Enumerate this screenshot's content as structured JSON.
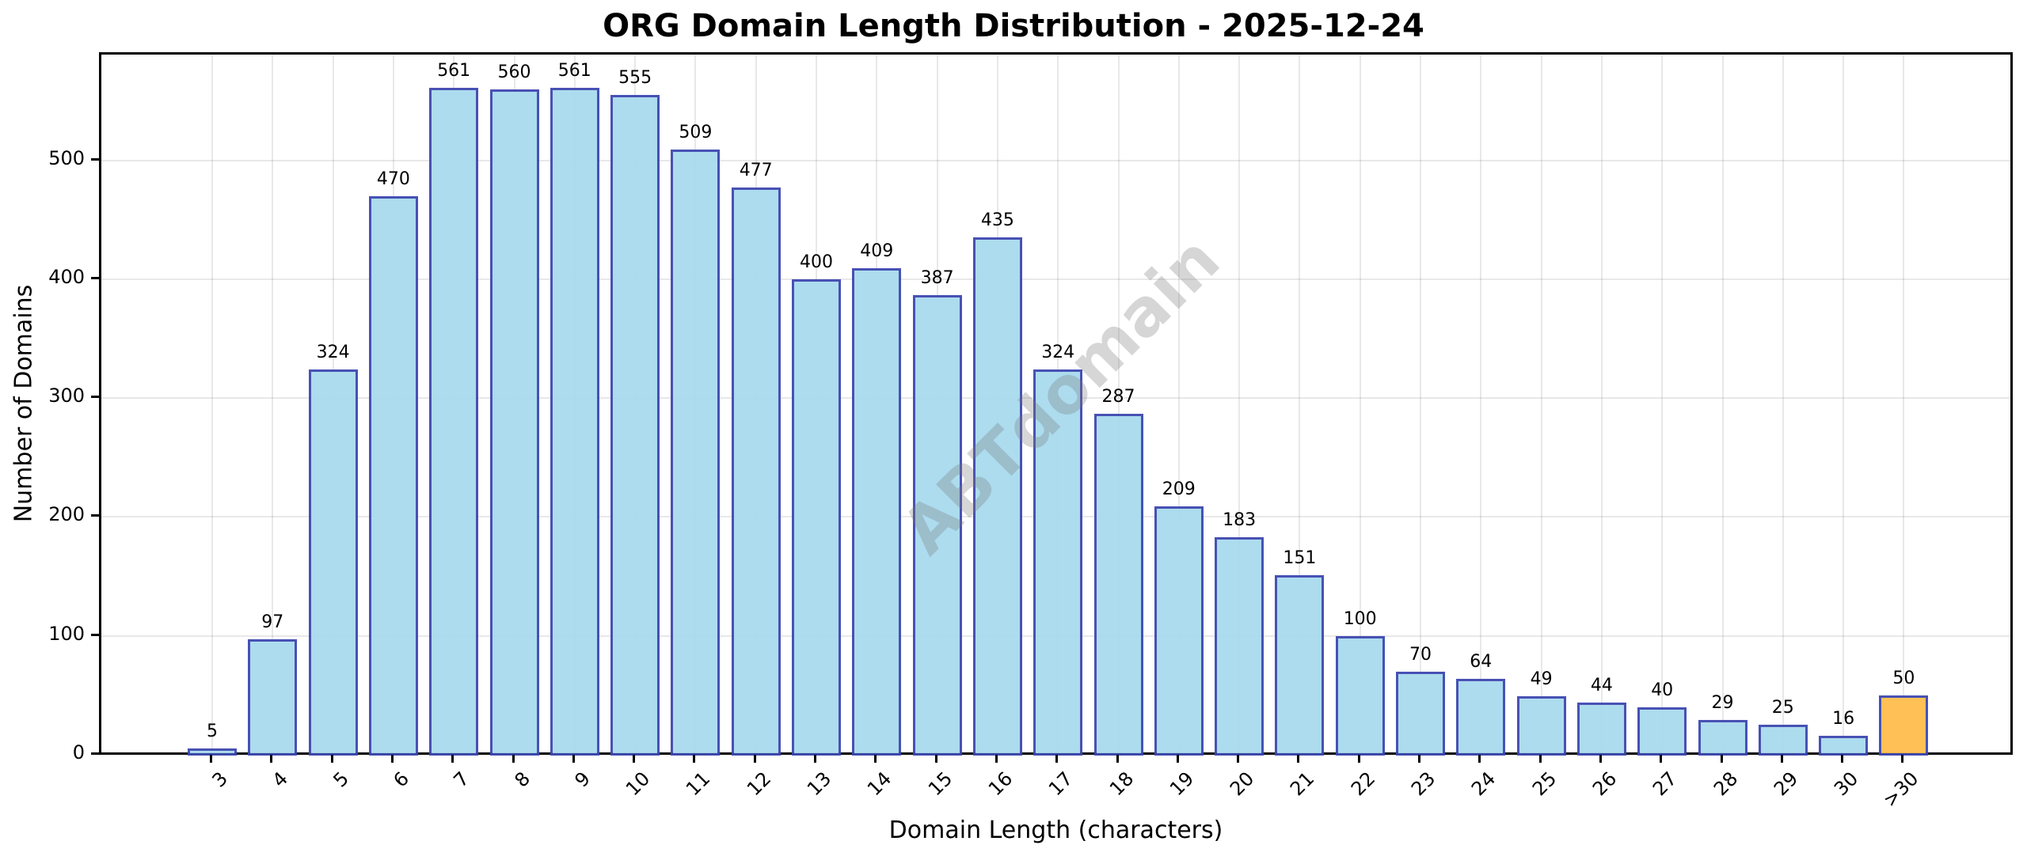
{
  "chart_data": {
    "type": "bar",
    "title": "ORG Domain Length Distribution - 2025-12-24",
    "xlabel": "Domain Length (characters)",
    "ylabel": "Number of Domains",
    "categories": [
      "3",
      "4",
      "5",
      "6",
      "7",
      "8",
      "9",
      "10",
      "11",
      "12",
      "13",
      "14",
      "15",
      "16",
      "17",
      "18",
      "19",
      "20",
      "21",
      "22",
      "23",
      "24",
      "25",
      "26",
      "27",
      "28",
      "29",
      "30",
      ">30"
    ],
    "values": [
      5,
      97,
      324,
      470,
      561,
      560,
      561,
      555,
      509,
      477,
      400,
      409,
      387,
      435,
      324,
      287,
      209,
      183,
      151,
      100,
      70,
      64,
      49,
      44,
      40,
      29,
      25,
      16,
      50
    ],
    "yticks": [
      0,
      100,
      200,
      300,
      400,
      500
    ],
    "ylim": [
      0,
      589
    ],
    "grid": true,
    "legend": null,
    "watermark": "ABTdomain",
    "colors": {
      "bar_fill": "#a8dbee",
      "bar_edge": "#3f48b0",
      "highlight_fill": "#ffbe4d",
      "highlight_category": ">30"
    }
  }
}
